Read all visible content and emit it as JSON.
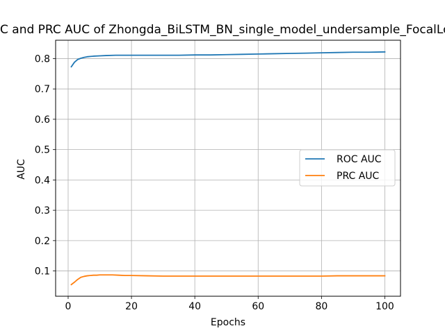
{
  "chart_data": {
    "type": "line",
    "title": "ROC and PRC AUC of Zhongda_BiLSTM_BN_single_model_undersample_FocalLoss",
    "xlabel": "Epochs",
    "ylabel": "AUC",
    "xlim": [
      -3.95,
      104.95
    ],
    "ylim": [
      0.0167,
      0.8605
    ],
    "xticks": [
      0,
      20,
      40,
      60,
      80,
      100
    ],
    "yticks": [
      0.1,
      0.2,
      0.3,
      0.4,
      0.5,
      0.6,
      0.7,
      0.8
    ],
    "xtick_labels": [
      "0",
      "20",
      "40",
      "60",
      "80",
      "100"
    ],
    "ytick_labels": [
      "0.1",
      "0.2",
      "0.3",
      "0.4",
      "0.5",
      "0.6",
      "0.7",
      "0.8"
    ],
    "grid": true,
    "legend": "center-right",
    "series": [
      {
        "name": "ROC AUC",
        "color": "#1f77b4",
        "x": [
          1,
          2,
          3,
          4,
          5,
          6,
          7,
          8,
          10,
          12,
          15,
          20,
          25,
          30,
          35,
          40,
          45,
          50,
          55,
          60,
          65,
          70,
          75,
          80,
          85,
          90,
          95,
          100
        ],
        "values": [
          0.773,
          0.788,
          0.797,
          0.801,
          0.804,
          0.806,
          0.807,
          0.808,
          0.809,
          0.81,
          0.811,
          0.811,
          0.811,
          0.811,
          0.811,
          0.812,
          0.812,
          0.813,
          0.814,
          0.815,
          0.816,
          0.817,
          0.818,
          0.819,
          0.82,
          0.821,
          0.821,
          0.822
        ]
      },
      {
        "name": "PRC AUC",
        "color": "#ff7f0e",
        "x": [
          1,
          2,
          3,
          4,
          5,
          6,
          7,
          8,
          9,
          10,
          12,
          14,
          16,
          18,
          20,
          25,
          30,
          35,
          40,
          45,
          50,
          55,
          60,
          65,
          70,
          75,
          80,
          85,
          90,
          95,
          100
        ],
        "values": [
          0.055,
          0.063,
          0.072,
          0.079,
          0.082,
          0.084,
          0.085,
          0.086,
          0.086,
          0.087,
          0.087,
          0.087,
          0.086,
          0.085,
          0.085,
          0.084,
          0.083,
          0.083,
          0.083,
          0.083,
          0.083,
          0.083,
          0.083,
          0.083,
          0.083,
          0.083,
          0.083,
          0.084,
          0.084,
          0.084,
          0.084
        ]
      }
    ]
  }
}
